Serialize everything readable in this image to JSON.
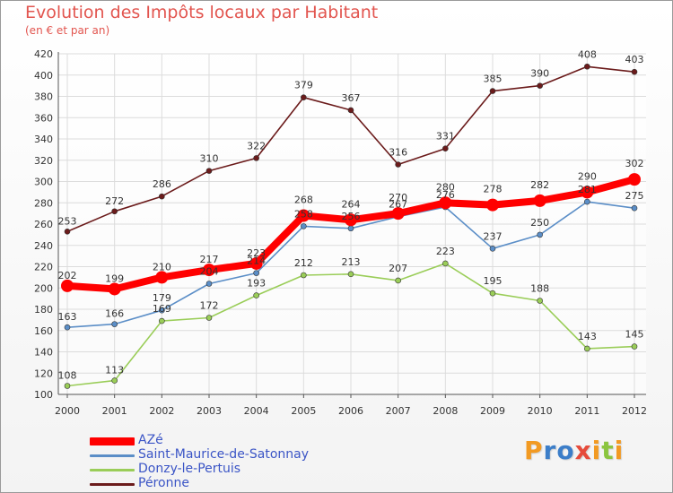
{
  "title": "Evolution des Impôts locaux par Habitant",
  "subtitle": "(en € et par an)",
  "logo_text": "Proxiti",
  "colors": {
    "title": "#e2554f",
    "axis_text": "#333333",
    "grid": "#dcdcdc",
    "legend_text": "#3b55c6"
  },
  "chart_data": {
    "type": "line",
    "x": [
      "2000",
      "2001",
      "2002",
      "2003",
      "2004",
      "2005",
      "2006",
      "2007",
      "2008",
      "2009",
      "2010",
      "2011",
      "2012"
    ],
    "ylim": [
      100,
      420
    ],
    "yticks": [
      100,
      120,
      140,
      160,
      180,
      200,
      220,
      240,
      260,
      280,
      300,
      320,
      340,
      360,
      380,
      400,
      420
    ],
    "grid": true,
    "legend_position": "bottom-left",
    "series": [
      {
        "name": "AZé",
        "color": "#ff0000",
        "values": [
          202,
          199,
          210,
          217,
          223,
          268,
          264,
          270,
          280,
          278,
          282,
          290,
          302
        ],
        "labels": [
          202,
          199,
          210,
          217,
          223,
          268,
          264,
          270,
          280,
          278,
          282,
          290,
          302
        ]
      },
      {
        "name": "Saint-Maurice-de-Satonnay",
        "color": "#5b8ec7",
        "values": [
          163,
          166,
          179,
          204,
          214,
          258,
          256,
          267,
          276,
          237,
          250,
          281,
          275
        ],
        "labels": [
          163,
          166,
          179,
          204,
          214,
          258,
          256,
          267,
          276,
          237,
          250,
          281,
          275
        ]
      },
      {
        "name": "Donzy-le-Pertuis",
        "color": "#9acd58",
        "values": [
          108,
          113,
          169,
          172,
          193,
          212,
          213,
          207,
          223,
          195,
          188,
          143,
          145
        ],
        "labels": [
          108,
          113,
          169,
          172,
          193,
          212,
          213,
          207,
          223,
          195,
          188,
          143,
          145
        ]
      },
      {
        "name": "Péronne",
        "color": "#6b1b1b",
        "values": [
          253,
          272,
          286,
          310,
          322,
          379,
          367,
          316,
          331,
          385,
          390,
          408,
          403
        ],
        "labels": [
          253,
          272,
          286,
          310,
          322,
          379,
          367,
          316,
          331,
          385,
          390,
          408,
          403
        ]
      }
    ]
  }
}
